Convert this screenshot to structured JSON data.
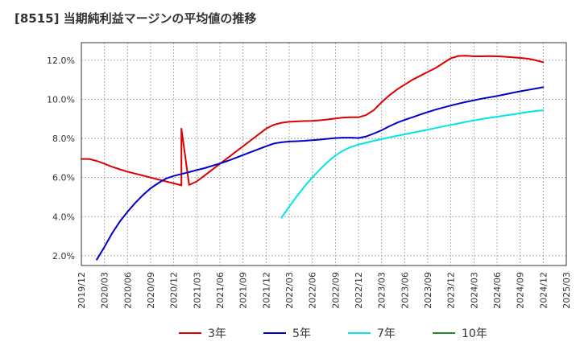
{
  "chart_data": {
    "type": "line",
    "title": "[8515]  当期純利益マージンの平均値の推移",
    "xlabel": "",
    "ylabel": "",
    "ylim": [
      1.5,
      12.9
    ],
    "y_ticks": [
      "2.0%",
      "4.0%",
      "6.0%",
      "8.0%",
      "10.0%",
      "12.0%"
    ],
    "y_tick_values": [
      2,
      4,
      6,
      8,
      10,
      12
    ],
    "x_ticks": [
      "2019/12",
      "2020/03",
      "2020/06",
      "2020/09",
      "2020/12",
      "2021/03",
      "2021/06",
      "2021/09",
      "2021/12",
      "2022/03",
      "2022/06",
      "2022/09",
      "2022/12",
      "2023/03",
      "2023/06",
      "2023/09",
      "2023/12",
      "2024/03",
      "2024/06",
      "2024/09",
      "2024/12",
      "2025/03"
    ],
    "x_start": "2019/12",
    "grid": true,
    "legend_position": "bottom",
    "series": [
      {
        "name": "3年",
        "color": "#dd0000",
        "points": [
          [
            "2019/12",
            6.95
          ],
          [
            "2020/01",
            6.95
          ],
          [
            "2020/02",
            6.85
          ],
          [
            "2020/03",
            6.7
          ],
          [
            "2020/04",
            6.55
          ],
          [
            "2020/05",
            6.42
          ],
          [
            "2020/06",
            6.3
          ],
          [
            "2020/07",
            6.2
          ],
          [
            "2020/08",
            6.1
          ],
          [
            "2020/09",
            6.0
          ],
          [
            "2020/10",
            5.9
          ],
          [
            "2020/11",
            5.8
          ],
          [
            "2020/12",
            5.7
          ],
          [
            "2021/01",
            5.6
          ],
          [
            "2021/02",
            5.62
          ],
          [
            "2021/03",
            5.8
          ],
          [
            "2021/04",
            6.1
          ],
          [
            "2021/05",
            6.4
          ],
          [
            "2021/06",
            6.7
          ],
          [
            "2021/07",
            7.0
          ],
          [
            "2021/08",
            7.3
          ],
          [
            "2021/09",
            7.6
          ],
          [
            "2021/10",
            7.9
          ],
          [
            "2021/11",
            8.2
          ],
          [
            "2021/12",
            8.5
          ],
          [
            "2021/01",
            8.5
          ],
          [
            "2022/01",
            8.7
          ],
          [
            "2022/02",
            8.8
          ],
          [
            "2022/03",
            8.85
          ],
          [
            "2022/04",
            8.87
          ],
          [
            "2022/05",
            8.89
          ],
          [
            "2022/06",
            8.9
          ],
          [
            "2022/07",
            8.93
          ],
          [
            "2022/08",
            8.97
          ],
          [
            "2022/09",
            9.02
          ],
          [
            "2022/10",
            9.07
          ],
          [
            "2022/11",
            9.08
          ],
          [
            "2022/12",
            9.08
          ],
          [
            "2023/01",
            9.2
          ],
          [
            "2023/02",
            9.45
          ],
          [
            "2023/03",
            9.85
          ],
          [
            "2023/04",
            10.2
          ],
          [
            "2023/05",
            10.5
          ],
          [
            "2023/06",
            10.75
          ],
          [
            "2023/07",
            11.0
          ],
          [
            "2023/08",
            11.2
          ],
          [
            "2023/09",
            11.4
          ],
          [
            "2023/10",
            11.6
          ],
          [
            "2023/11",
            11.85
          ],
          [
            "2023/12",
            12.1
          ],
          [
            "2024/01",
            12.22
          ],
          [
            "2024/02",
            12.23
          ],
          [
            "2024/03",
            12.2
          ],
          [
            "2024/04",
            12.2
          ],
          [
            "2024/05",
            12.21
          ],
          [
            "2024/06",
            12.2
          ],
          [
            "2024/07",
            12.18
          ],
          [
            "2024/08",
            12.15
          ],
          [
            "2024/09",
            12.12
          ],
          [
            "2024/10",
            12.08
          ],
          [
            "2024/11",
            12.0
          ],
          [
            "2024/12",
            11.9
          ]
        ]
      },
      {
        "name": "5年",
        "color": "#0000cc",
        "points": [
          [
            "2020/02",
            1.8
          ],
          [
            "2020/03",
            2.45
          ],
          [
            "2020/04",
            3.15
          ],
          [
            "2020/05",
            3.75
          ],
          [
            "2020/06",
            4.25
          ],
          [
            "2020/07",
            4.7
          ],
          [
            "2020/08",
            5.1
          ],
          [
            "2020/09",
            5.45
          ],
          [
            "2020/10",
            5.72
          ],
          [
            "2020/11",
            5.95
          ],
          [
            "2020/12",
            6.08
          ],
          [
            "2021/01",
            6.18
          ],
          [
            "2021/02",
            6.28
          ],
          [
            "2021/03",
            6.38
          ],
          [
            "2021/04",
            6.48
          ],
          [
            "2021/05",
            6.6
          ],
          [
            "2021/06",
            6.72
          ],
          [
            "2021/07",
            6.85
          ],
          [
            "2021/08",
            7.0
          ],
          [
            "2021/09",
            7.15
          ],
          [
            "2021/10",
            7.3
          ],
          [
            "2021/11",
            7.45
          ],
          [
            "2021/12",
            7.6
          ],
          [
            "2022/01",
            7.74
          ],
          [
            "2022/02",
            7.8
          ],
          [
            "2022/03",
            7.84
          ],
          [
            "2022/04",
            7.86
          ],
          [
            "2022/05",
            7.88
          ],
          [
            "2022/06",
            7.91
          ],
          [
            "2022/07",
            7.94
          ],
          [
            "2022/08",
            7.98
          ],
          [
            "2022/09",
            8.02
          ],
          [
            "2022/10",
            8.04
          ],
          [
            "2022/11",
            8.04
          ],
          [
            "2022/12",
            8.02
          ],
          [
            "2023/01",
            8.1
          ],
          [
            "2023/02",
            8.25
          ],
          [
            "2023/03",
            8.42
          ],
          [
            "2023/04",
            8.62
          ],
          [
            "2023/05",
            8.8
          ],
          [
            "2023/06",
            8.95
          ],
          [
            "2023/07",
            9.08
          ],
          [
            "2023/08",
            9.22
          ],
          [
            "2023/09",
            9.35
          ],
          [
            "2023/10",
            9.47
          ],
          [
            "2023/11",
            9.58
          ],
          [
            "2023/12",
            9.68
          ],
          [
            "2024/01",
            9.78
          ],
          [
            "2024/02",
            9.87
          ],
          [
            "2024/03",
            9.95
          ],
          [
            "2024/04",
            10.03
          ],
          [
            "2024/05",
            10.1
          ],
          [
            "2024/06",
            10.17
          ],
          [
            "2024/07",
            10.25
          ],
          [
            "2024/08",
            10.33
          ],
          [
            "2024/09",
            10.41
          ],
          [
            "2024/10",
            10.48
          ],
          [
            "2024/11",
            10.55
          ],
          [
            "2024/12",
            10.62
          ]
        ]
      },
      {
        "name": "7年",
        "color": "#00e5e5",
        "points": [
          [
            "2022/02",
            3.95
          ],
          [
            "2022/03",
            4.5
          ],
          [
            "2022/04",
            5.05
          ],
          [
            "2022/05",
            5.55
          ],
          [
            "2022/06",
            6.0
          ],
          [
            "2022/07",
            6.42
          ],
          [
            "2022/08",
            6.8
          ],
          [
            "2022/09",
            7.12
          ],
          [
            "2022/10",
            7.38
          ],
          [
            "2022/11",
            7.56
          ],
          [
            "2022/12",
            7.68
          ],
          [
            "2023/01",
            7.78
          ],
          [
            "2023/02",
            7.88
          ],
          [
            "2023/03",
            7.96
          ],
          [
            "2023/04",
            8.05
          ],
          [
            "2023/05",
            8.13
          ],
          [
            "2023/06",
            8.21
          ],
          [
            "2023/07",
            8.29
          ],
          [
            "2023/08",
            8.37
          ],
          [
            "2023/09",
            8.45
          ],
          [
            "2023/10",
            8.53
          ],
          [
            "2023/11",
            8.61
          ],
          [
            "2023/12",
            8.69
          ],
          [
            "2024/01",
            8.77
          ],
          [
            "2024/02",
            8.85
          ],
          [
            "2024/03",
            8.92
          ],
          [
            "2024/04",
            8.99
          ],
          [
            "2024/05",
            9.05
          ],
          [
            "2024/06",
            9.11
          ],
          [
            "2024/07",
            9.17
          ],
          [
            "2024/08",
            9.23
          ],
          [
            "2024/09",
            9.29
          ],
          [
            "2024/10",
            9.35
          ],
          [
            "2024/11",
            9.4
          ],
          [
            "2024/12",
            9.44
          ]
        ]
      },
      {
        "name": "10年",
        "color": "#228b22",
        "points": []
      }
    ]
  }
}
